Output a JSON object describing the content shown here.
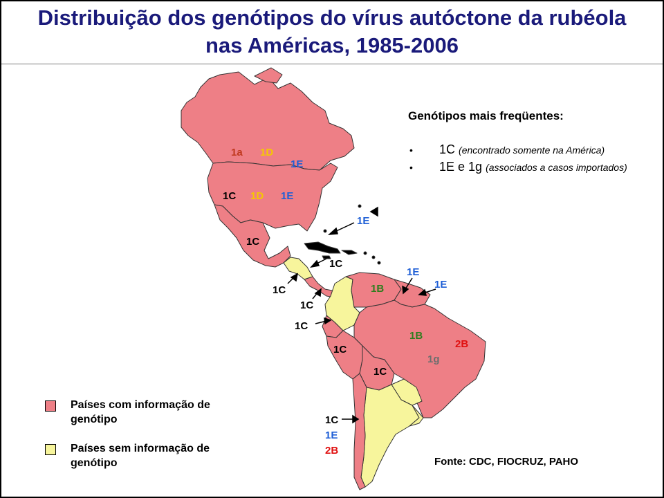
{
  "title": {
    "line1": "Distribuição dos genótipos do vírus autóctone da rubéola",
    "line2": "nas Américas, 1985-2006"
  },
  "colors": {
    "with_info": "#ee7f86",
    "without_info": "#f7f59c",
    "border": "#333333",
    "genotype_1C": "#000000",
    "genotype_1E": "#1f5fd6",
    "genotype_1D": "#f5c800",
    "genotype_1a": "#c0391f",
    "genotype_1B": "#2e7d1e",
    "genotype_2B": "#e01010",
    "genotype_1g": "#6e6e6e",
    "title": "#1a1a7a"
  },
  "legend": {
    "heading": "Genótipos mais freqüentes:",
    "items": [
      {
        "bullet": "•",
        "genotype": "1C",
        "note": "(encontrado somente na América)"
      },
      {
        "bullet": "•",
        "genotype": "1E e 1g",
        "note": "(associados a casos importados)"
      }
    ]
  },
  "key": {
    "with_info": "Países com informação de genótipo",
    "without_info": "Países sem informação de genótipo"
  },
  "source": "Fonte: CDC, FIOCRUZ, PAHO",
  "map_labels": {
    "canada": [
      "1a",
      "1D",
      "1E"
    ],
    "usa": [
      "1C",
      "1D",
      "1E"
    ],
    "mexico": [
      "1C"
    ],
    "caribbean_1E": "1E",
    "caribbean_1C": "1C",
    "central_1": "1C",
    "central_2": "1C",
    "ecuador": "1C",
    "peru": "1C",
    "bolivia": "1C",
    "venezuela": "1B",
    "guyana": "1E",
    "suriname": "1E",
    "brazil": [
      "1B",
      "2B",
      "1g"
    ],
    "chile": [
      "1C",
      "1E",
      "2B"
    ]
  }
}
